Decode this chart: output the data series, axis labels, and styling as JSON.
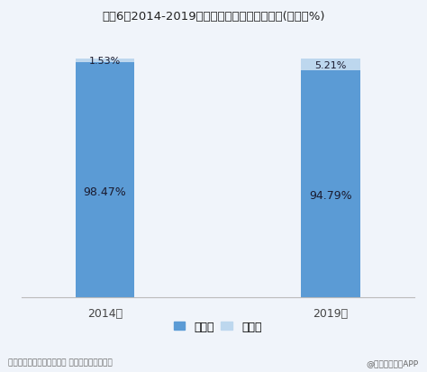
{
  "title": "图表6：2014-2019年中国茶饮料产品构成变化(单位：%)",
  "categories": [
    "2014年",
    "2019年"
  ],
  "sugared_tea": [
    98.47,
    94.79
  ],
  "unsugared_tea": [
    1.53,
    5.21
  ],
  "sugared_color": "#5B9BD5",
  "unsugared_color": "#BDD7EE",
  "legend_sugared": "含糖茶",
  "legend_unsugared": "无糖茶",
  "footer": "资料来源：弗若斯特沙利文 前瞻产业研究院整理",
  "footer_right": "@前瞻经济学人APP",
  "bar_width": 0.12,
  "x_positions": [
    0.27,
    0.73
  ],
  "ylim": [
    0,
    106
  ],
  "background_color": "#f0f4fa",
  "label_color_sugared": "#1a1a2e",
  "label_color_unsugared": "#1a1a2e"
}
